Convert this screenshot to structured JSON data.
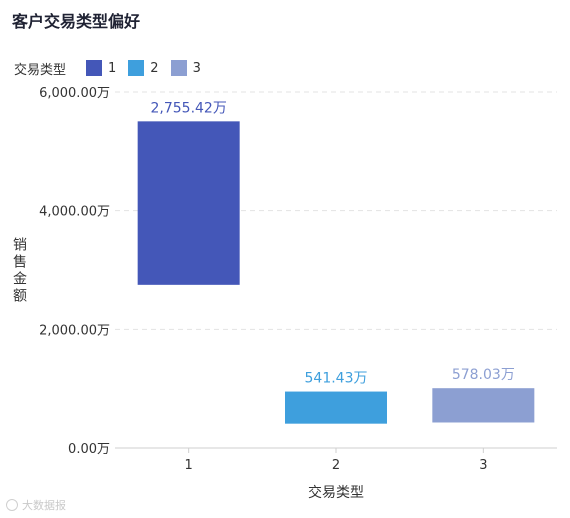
{
  "chart_data": {
    "type": "bar",
    "title": "客户交易类型偏好",
    "legend_title": "交易类型",
    "legend_position": "top-left",
    "xlabel": "交易类型",
    "ylabel": "销售金额",
    "categories": [
      "1",
      "2",
      "3"
    ],
    "series": [
      {
        "name": "1",
        "color": "#4457b8",
        "base": 2750,
        "value": 2755.42,
        "label": "2,755.42万"
      },
      {
        "name": "2",
        "color": "#3e9fdd",
        "base": 410,
        "value": 541.43,
        "label": "541.43万"
      },
      {
        "name": "3",
        "color": "#8c9fd2",
        "base": 430,
        "value": 578.03,
        "label": "578.03万"
      }
    ],
    "ylim": [
      0,
      6000
    ],
    "yticks": [
      {
        "value": 0,
        "label": "0.00万"
      },
      {
        "value": 2000,
        "label": "2,000.00万"
      },
      {
        "value": 4000,
        "label": "4,000.00万"
      },
      {
        "value": 6000,
        "label": "6,000.00万"
      }
    ],
    "grid": true
  },
  "watermark": "大数据报"
}
